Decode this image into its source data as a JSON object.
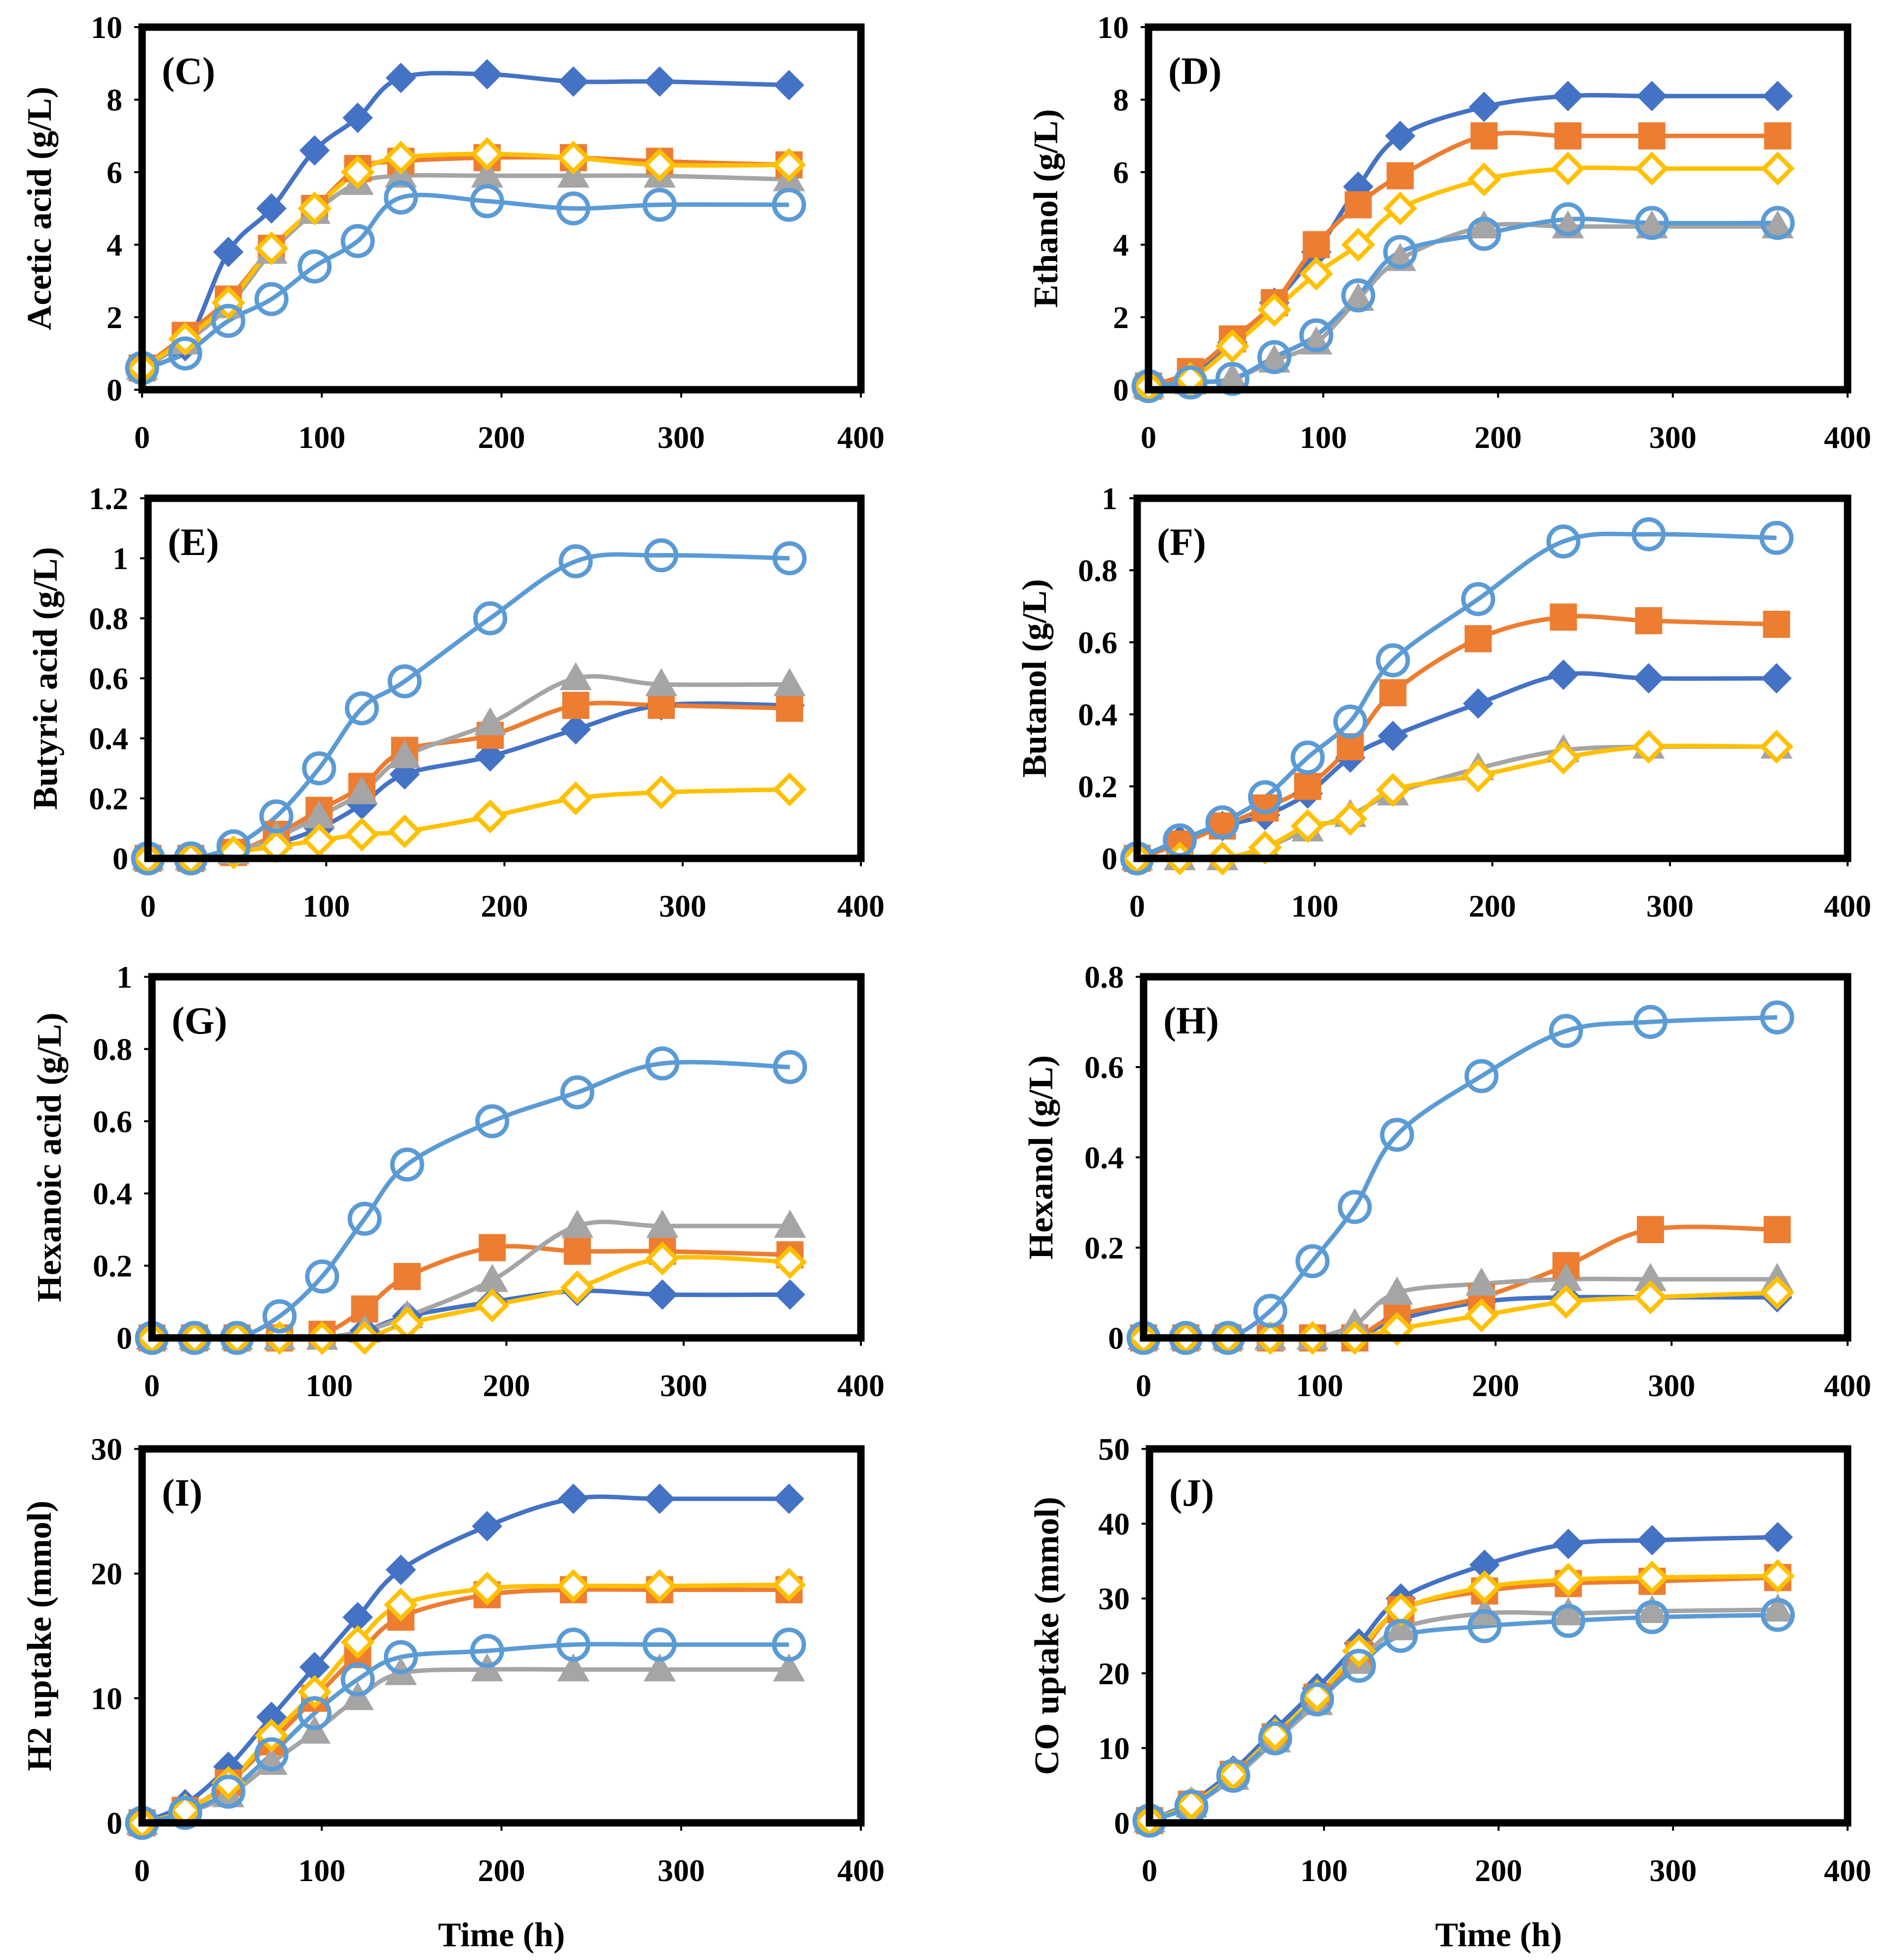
{
  "figure": {
    "colors": {
      "s1": "#4472C4",
      "s2": "#ED7D31",
      "s3": "#A5A5A5",
      "s4": "#FFC000",
      "s5": "#5B9BD5"
    },
    "series_markers": [
      "diamond-filled",
      "square-filled",
      "triangle-filled",
      "diamond-open",
      "circle-open"
    ]
  },
  "chart_data": [
    {
      "type": "line",
      "label": "(C)",
      "ylabel": "Acetic acid (g/L)",
      "xlabel": "",
      "xlim": [
        0,
        400
      ],
      "ylim": [
        0,
        10
      ],
      "xticks": [
        "0",
        "100",
        "200",
        "300",
        "400"
      ],
      "yticks": [
        "0",
        "2",
        "4",
        "6",
        "8",
        "10"
      ],
      "x": [
        0,
        24,
        48,
        72,
        96,
        120,
        144,
        192,
        240,
        288,
        360
      ],
      "series": [
        {
          "name": "series-1",
          "values": [
            0.6,
            1.2,
            3.8,
            5.0,
            6.6,
            7.5,
            8.6,
            8.7,
            8.5,
            8.5,
            8.4
          ]
        },
        {
          "name": "series-2",
          "values": [
            0.6,
            1.5,
            2.5,
            3.9,
            5.0,
            6.1,
            6.3,
            6.4,
            6.4,
            6.3,
            6.2
          ]
        },
        {
          "name": "series-3",
          "values": [
            0.6,
            1.3,
            2.3,
            3.8,
            4.9,
            5.7,
            5.9,
            5.9,
            5.9,
            5.9,
            5.8
          ]
        },
        {
          "name": "series-4",
          "values": [
            0.6,
            1.4,
            2.4,
            3.9,
            5.0,
            6.0,
            6.4,
            6.5,
            6.4,
            6.2,
            6.2
          ]
        },
        {
          "name": "series-5",
          "values": [
            0.6,
            1.0,
            1.9,
            2.5,
            3.4,
            4.1,
            5.3,
            5.2,
            5.0,
            5.1,
            5.1
          ]
        }
      ]
    },
    {
      "type": "line",
      "label": "(D)",
      "ylabel": "Ethanol (g/L)",
      "xlabel": "",
      "xlim": [
        0,
        400
      ],
      "ylim": [
        0,
        10
      ],
      "xticks": [
        "0",
        "100",
        "200",
        "300",
        "400"
      ],
      "yticks": [
        "0",
        "2",
        "4",
        "6",
        "8",
        "10"
      ],
      "x": [
        0,
        24,
        48,
        72,
        96,
        120,
        144,
        192,
        240,
        288,
        360
      ],
      "series": [
        {
          "name": "series-1",
          "values": [
            0.1,
            0.4,
            1.3,
            2.4,
            3.8,
            5.6,
            7.0,
            7.8,
            8.1,
            8.1,
            8.1
          ]
        },
        {
          "name": "series-2",
          "values": [
            0.1,
            0.5,
            1.4,
            2.4,
            4.0,
            5.1,
            5.9,
            7.0,
            7.0,
            7.0,
            7.0
          ]
        },
        {
          "name": "series-3",
          "values": [
            0.1,
            0.2,
            0.3,
            0.8,
            1.3,
            2.5,
            3.6,
            4.5,
            4.5,
            4.5,
            4.5
          ]
        },
        {
          "name": "series-4",
          "values": [
            0.1,
            0.3,
            1.2,
            2.2,
            3.2,
            4.0,
            5.0,
            5.8,
            6.1,
            6.1,
            6.1
          ]
        },
        {
          "name": "series-5",
          "values": [
            0.1,
            0.2,
            0.3,
            0.9,
            1.5,
            2.6,
            3.8,
            4.3,
            4.7,
            4.6,
            4.6
          ]
        }
      ]
    },
    {
      "type": "line",
      "label": "(E)",
      "ylabel": "Butyric acid (g/L)",
      "xlabel": "",
      "xlim": [
        0,
        400
      ],
      "ylim": [
        0,
        1.2
      ],
      "xticks": [
        "0",
        "100",
        "200",
        "300",
        "400"
      ],
      "yticks": [
        "0",
        "0.2",
        "0.4",
        "0.6",
        "0.8",
        "1",
        "1.2"
      ],
      "x": [
        0,
        24,
        48,
        72,
        96,
        120,
        144,
        192,
        240,
        288,
        360
      ],
      "series": [
        {
          "name": "series-1",
          "values": [
            0,
            0,
            0.02,
            0.05,
            0.1,
            0.18,
            0.28,
            0.34,
            0.43,
            0.51,
            0.51
          ]
        },
        {
          "name": "series-2",
          "values": [
            0,
            0,
            0.02,
            0.08,
            0.16,
            0.24,
            0.36,
            0.41,
            0.51,
            0.51,
            0.5
          ]
        },
        {
          "name": "series-3",
          "values": [
            0,
            0,
            0.02,
            0.07,
            0.14,
            0.22,
            0.34,
            0.45,
            0.6,
            0.58,
            0.58
          ]
        },
        {
          "name": "series-4",
          "values": [
            0,
            0,
            0.02,
            0.04,
            0.06,
            0.08,
            0.09,
            0.14,
            0.2,
            0.22,
            0.23
          ]
        },
        {
          "name": "series-5",
          "values": [
            0,
            0,
            0.04,
            0.14,
            0.3,
            0.5,
            0.59,
            0.8,
            0.99,
            1.01,
            1.0
          ]
        }
      ]
    },
    {
      "type": "line",
      "label": "(F)",
      "ylabel": "Butanol (g/L)",
      "xlabel": "",
      "xlim": [
        0,
        400
      ],
      "ylim": [
        0,
        1
      ],
      "xticks": [
        "0",
        "100",
        "200",
        "300",
        "400"
      ],
      "yticks": [
        "0",
        "0.2",
        "0.4",
        "0.6",
        "0.8",
        "1"
      ],
      "x": [
        0,
        24,
        48,
        72,
        96,
        120,
        144,
        192,
        240,
        288,
        360
      ],
      "series": [
        {
          "name": "series-1",
          "values": [
            0,
            0.05,
            0.09,
            0.12,
            0.18,
            0.28,
            0.34,
            0.43,
            0.51,
            0.5,
            0.5
          ]
        },
        {
          "name": "series-2",
          "values": [
            0,
            0.04,
            0.09,
            0.14,
            0.2,
            0.31,
            0.46,
            0.61,
            0.67,
            0.66,
            0.65
          ]
        },
        {
          "name": "series-3",
          "values": [
            0,
            0,
            0,
            0.03,
            0.08,
            0.12,
            0.18,
            0.25,
            0.3,
            0.31,
            0.31
          ]
        },
        {
          "name": "series-4",
          "values": [
            0,
            0,
            0,
            0.03,
            0.09,
            0.11,
            0.19,
            0.23,
            0.28,
            0.31,
            0.31
          ]
        },
        {
          "name": "series-5",
          "values": [
            0,
            0.05,
            0.1,
            0.17,
            0.28,
            0.38,
            0.55,
            0.72,
            0.88,
            0.9,
            0.89
          ]
        }
      ]
    },
    {
      "type": "line",
      "label": "(G)",
      "ylabel": "Hexanoic acid (g/L)",
      "xlabel": "",
      "xlim": [
        0,
        400
      ],
      "ylim": [
        0,
        1
      ],
      "xticks": [
        "0",
        "100",
        "200",
        "300",
        "400"
      ],
      "yticks": [
        "0",
        "0.2",
        "0.4",
        "0.6",
        "0.8",
        "1"
      ],
      "x": [
        0,
        24,
        48,
        72,
        96,
        120,
        144,
        192,
        240,
        288,
        360
      ],
      "series": [
        {
          "name": "series-1",
          "values": [
            0,
            0,
            0,
            0,
            0,
            0.02,
            0.06,
            0.1,
            0.13,
            0.12,
            0.12
          ]
        },
        {
          "name": "series-2",
          "values": [
            0,
            0,
            0,
            0,
            0.01,
            0.08,
            0.17,
            0.25,
            0.24,
            0.24,
            0.23
          ]
        },
        {
          "name": "series-3",
          "values": [
            0,
            0,
            0,
            0,
            0,
            0.02,
            0.06,
            0.16,
            0.31,
            0.31,
            0.31
          ]
        },
        {
          "name": "series-4",
          "values": [
            0,
            0,
            0,
            0,
            0,
            0,
            0.04,
            0.09,
            0.14,
            0.22,
            0.21
          ]
        },
        {
          "name": "series-5",
          "values": [
            0,
            0,
            0,
            0.06,
            0.17,
            0.33,
            0.48,
            0.6,
            0.68,
            0.76,
            0.75
          ]
        }
      ]
    },
    {
      "type": "line",
      "label": "(H)",
      "ylabel": "Hexanol (g/L)",
      "xlabel": "",
      "xlim": [
        0,
        400
      ],
      "ylim": [
        0,
        0.8
      ],
      "xticks": [
        "0",
        "100",
        "200",
        "300",
        "400"
      ],
      "yticks": [
        "0",
        "0.2",
        "0.4",
        "0.6",
        "0.8"
      ],
      "x": [
        0,
        24,
        48,
        72,
        96,
        120,
        144,
        192,
        240,
        288,
        360
      ],
      "series": [
        {
          "name": "series-1",
          "values": [
            0,
            0,
            0,
            0,
            0,
            0,
            0.04,
            0.08,
            0.09,
            0.09,
            0.09
          ]
        },
        {
          "name": "series-2",
          "values": [
            0,
            0,
            0,
            0,
            0,
            0,
            0.05,
            0.09,
            0.16,
            0.24,
            0.24
          ]
        },
        {
          "name": "series-3",
          "values": [
            0,
            0,
            0,
            0,
            0,
            0.03,
            0.1,
            0.12,
            0.13,
            0.13,
            0.13
          ]
        },
        {
          "name": "series-4",
          "values": [
            0,
            0,
            0,
            0,
            0,
            0,
            0.02,
            0.05,
            0.08,
            0.09,
            0.1
          ]
        },
        {
          "name": "series-5",
          "values": [
            0,
            0,
            0,
            0.06,
            0.17,
            0.29,
            0.45,
            0.58,
            0.68,
            0.7,
            0.71
          ]
        }
      ]
    },
    {
      "type": "line",
      "label": "(I)",
      "ylabel": "H2 uptake (mmol)",
      "xlabel": "Time (h)",
      "xlim": [
        0,
        400
      ],
      "ylim": [
        0,
        30
      ],
      "xticks": [
        "0",
        "100",
        "200",
        "300",
        "400"
      ],
      "yticks": [
        "0",
        "10",
        "20",
        "30"
      ],
      "x": [
        0,
        24,
        48,
        72,
        96,
        120,
        144,
        192,
        240,
        288,
        360
      ],
      "series": [
        {
          "name": "series-1",
          "values": [
            0,
            1.5,
            4.5,
            8.5,
            12.5,
            16.5,
            20.3,
            23.8,
            26.0,
            26.0,
            26.0
          ]
        },
        {
          "name": "series-2",
          "values": [
            0,
            1.0,
            3.2,
            6.5,
            10.0,
            13.5,
            16.5,
            18.3,
            18.7,
            18.7,
            18.7
          ]
        },
        {
          "name": "series-3",
          "values": [
            0,
            0.8,
            2.2,
            4.8,
            7.3,
            10.0,
            12.0,
            12.3,
            12.3,
            12.3,
            12.3
          ]
        },
        {
          "name": "series-4",
          "values": [
            0,
            1.0,
            3.2,
            7.0,
            10.5,
            14.5,
            17.5,
            18.8,
            19.0,
            19.0,
            19.1
          ]
        },
        {
          "name": "series-5",
          "values": [
            0,
            0.8,
            2.5,
            5.5,
            8.8,
            11.5,
            13.3,
            13.8,
            14.3,
            14.3,
            14.3
          ]
        }
      ]
    },
    {
      "type": "line",
      "label": "(J)",
      "ylabel": "CO uptake (mmol)",
      "xlabel": "Time (h)",
      "xlim": [
        0,
        400
      ],
      "ylim": [
        0,
        50
      ],
      "xticks": [
        "0",
        "100",
        "200",
        "300",
        "400"
      ],
      "yticks": [
        "0",
        "10",
        "20",
        "30",
        "40",
        "50"
      ],
      "x": [
        0,
        24,
        48,
        72,
        96,
        120,
        144,
        192,
        240,
        288,
        360
      ],
      "series": [
        {
          "name": "series-1",
          "values": [
            0.3,
            2.8,
            7.0,
            12.5,
            18.0,
            24.0,
            30.0,
            34.5,
            37.3,
            37.8,
            38.2
          ]
        },
        {
          "name": "series-2",
          "values": [
            0.3,
            2.5,
            6.5,
            11.5,
            16.8,
            22.5,
            28.5,
            31.0,
            32.0,
            32.3,
            32.8
          ]
        },
        {
          "name": "series-3",
          "values": [
            0.3,
            2.3,
            6.0,
            11.0,
            16.0,
            21.5,
            26.0,
            28.0,
            28.0,
            28.3,
            28.5
          ]
        },
        {
          "name": "series-4",
          "values": [
            0.3,
            2.5,
            6.5,
            11.8,
            17.0,
            23.0,
            28.5,
            31.5,
            32.5,
            32.8,
            33.0
          ]
        },
        {
          "name": "series-5",
          "values": [
            0.3,
            2.2,
            6.3,
            11.3,
            16.5,
            21.0,
            25.0,
            26.3,
            27.0,
            27.5,
            27.8
          ]
        }
      ]
    }
  ]
}
